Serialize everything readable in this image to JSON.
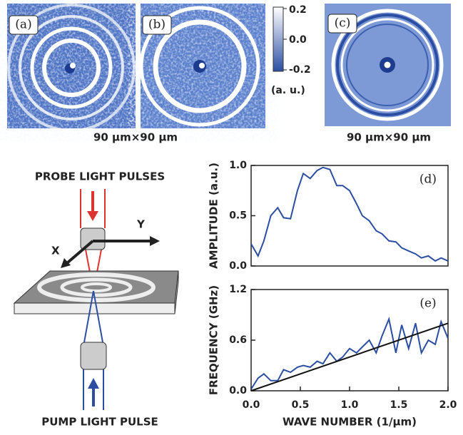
{
  "panels": {
    "a": "(a)",
    "b": "(b)",
    "c": "(c)"
  },
  "colorbar": {
    "ticks": [
      "0.2",
      "0.0",
      "-0.2"
    ],
    "unit": "(a. u.)"
  },
  "captions": {
    "left": "90 μm×90 μm",
    "right": "90 μm×90 μm"
  },
  "diagram": {
    "probe": "PROBE LIGHT PULSES",
    "pump": "PUMP LIGHT PULSE",
    "x_axis": "X",
    "y_axis": "Y"
  },
  "chart_data": [
    {
      "type": "line",
      "label": "(d)",
      "ylabel": "AMPLITUDE (a.u.)",
      "x": [
        0,
        0.07,
        0.13,
        0.2,
        0.27,
        0.33,
        0.4,
        0.47,
        0.53,
        0.6,
        0.67,
        0.73,
        0.8,
        0.87,
        0.93,
        1.0,
        1.07,
        1.13,
        1.2,
        1.27,
        1.33,
        1.4,
        1.47,
        1.53,
        1.6,
        1.67,
        1.73,
        1.8,
        1.87,
        1.93,
        2.0
      ],
      "series": [
        {
          "color": "#2b4ea3",
          "values": [
            0.22,
            0.1,
            0.25,
            0.5,
            0.58,
            0.48,
            0.47,
            0.75,
            0.92,
            0.87,
            0.95,
            0.98,
            0.96,
            0.8,
            0.8,
            0.75,
            0.62,
            0.5,
            0.45,
            0.35,
            0.32,
            0.25,
            0.24,
            0.18,
            0.15,
            0.12,
            0.08,
            0.1,
            0.05,
            0.08,
            0.05
          ]
        }
      ],
      "xlim": [
        0,
        2
      ],
      "ylim": [
        0,
        1
      ],
      "yticks": [
        {
          "value": 0,
          "label": "0.0"
        },
        0.5,
        {
          "value": 1,
          "label": "1.0"
        }
      ]
    },
    {
      "type": "line",
      "label": "(e)",
      "ylabel": "FREQUENCY (GHz)",
      "xlabel": "WAVE NUMBER (1/μm)",
      "x": [
        0,
        0.07,
        0.13,
        0.2,
        0.27,
        0.33,
        0.4,
        0.47,
        0.53,
        0.6,
        0.67,
        0.73,
        0.8,
        0.87,
        0.93,
        1.0,
        1.07,
        1.13,
        1.2,
        1.27,
        1.33,
        1.4,
        1.47,
        1.53,
        1.6,
        1.67,
        1.73,
        1.8,
        1.87,
        1.93,
        2.0
      ],
      "series": [
        {
          "color": "#2b4ea3",
          "values": [
            0.02,
            0.15,
            0.2,
            0.12,
            0.12,
            0.25,
            0.22,
            0.28,
            0.3,
            0.28,
            0.35,
            0.32,
            0.45,
            0.35,
            0.4,
            0.5,
            0.45,
            0.52,
            0.6,
            0.45,
            0.65,
            0.85,
            0.45,
            0.78,
            0.5,
            0.8,
            0.45,
            0.6,
            0.55,
            0.82,
            0.62
          ]
        },
        {
          "color": "#111111",
          "x": [
            0,
            2
          ],
          "values": [
            0,
            0.8
          ]
        }
      ],
      "xlim": [
        0,
        2
      ],
      "ylim": [
        0,
        1.2
      ],
      "xticks": [
        {
          "value": 0,
          "label": "0.0"
        },
        0.5,
        {
          "value": 1,
          "label": "1.0"
        },
        1.5,
        {
          "value": 2,
          "label": "2.0"
        }
      ],
      "yticks": [
        {
          "value": 0,
          "label": "0.0"
        },
        0.6,
        1.2
      ]
    }
  ]
}
